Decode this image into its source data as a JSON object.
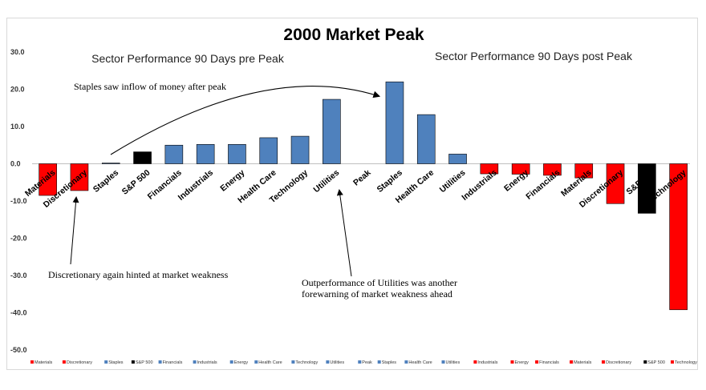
{
  "chart_data": {
    "type": "bar",
    "title": "2000 Market Peak",
    "subtitle_left": "Sector Performance 90 Days pre Peak",
    "subtitle_right": "Sector Performance 90 Days post Peak",
    "ylim": [
      -50,
      30
    ],
    "yticks": [
      "30.0",
      "20.0",
      "10.0",
      "0.0",
      "-10.0",
      "-20.0",
      "-30.0",
      "-40.0",
      "-50.0"
    ],
    "ytick_values": [
      30,
      20,
      10,
      0,
      -10,
      -20,
      -30,
      -40,
      -50
    ],
    "categories": [
      "Materials",
      "Discretionary",
      "Staples",
      "S&P 500",
      "Financials",
      "Industrials",
      "Energy",
      "Health Care",
      "Technology",
      "Utilities",
      "Peak",
      "Staples",
      "Health Care",
      "Utilities",
      "Industrials",
      "Energy",
      "Financials",
      "Materials",
      "Discretionary",
      "S&P 500",
      "Technology"
    ],
    "values": [
      -8.5,
      -7.2,
      0.2,
      3.2,
      5.0,
      5.2,
      5.2,
      7.0,
      7.4,
      17.3,
      0,
      22.0,
      13.2,
      2.6,
      -2.7,
      -2.8,
      -3.1,
      -3.8,
      -10.7,
      -13.3,
      -39.2
    ],
    "colors": [
      "#ff0000",
      "#ff0000",
      "#4f81bd",
      "#000000",
      "#4f81bd",
      "#4f81bd",
      "#4f81bd",
      "#4f81bd",
      "#4f81bd",
      "#4f81bd",
      "#4f81bd",
      "#4f81bd",
      "#4f81bd",
      "#4f81bd",
      "#ff0000",
      "#ff0000",
      "#ff0000",
      "#ff0000",
      "#ff0000",
      "#000000",
      "#ff0000"
    ],
    "annotations": {
      "staples": "Staples saw inflow of money after peak",
      "discretionary": "Discretionary again hinted at market weakness",
      "utilities_line1": "Outperformance of Utilities was another",
      "utilities_line2": "forewarning of market weakness ahead"
    },
    "grid": false,
    "legend": "bottom"
  }
}
